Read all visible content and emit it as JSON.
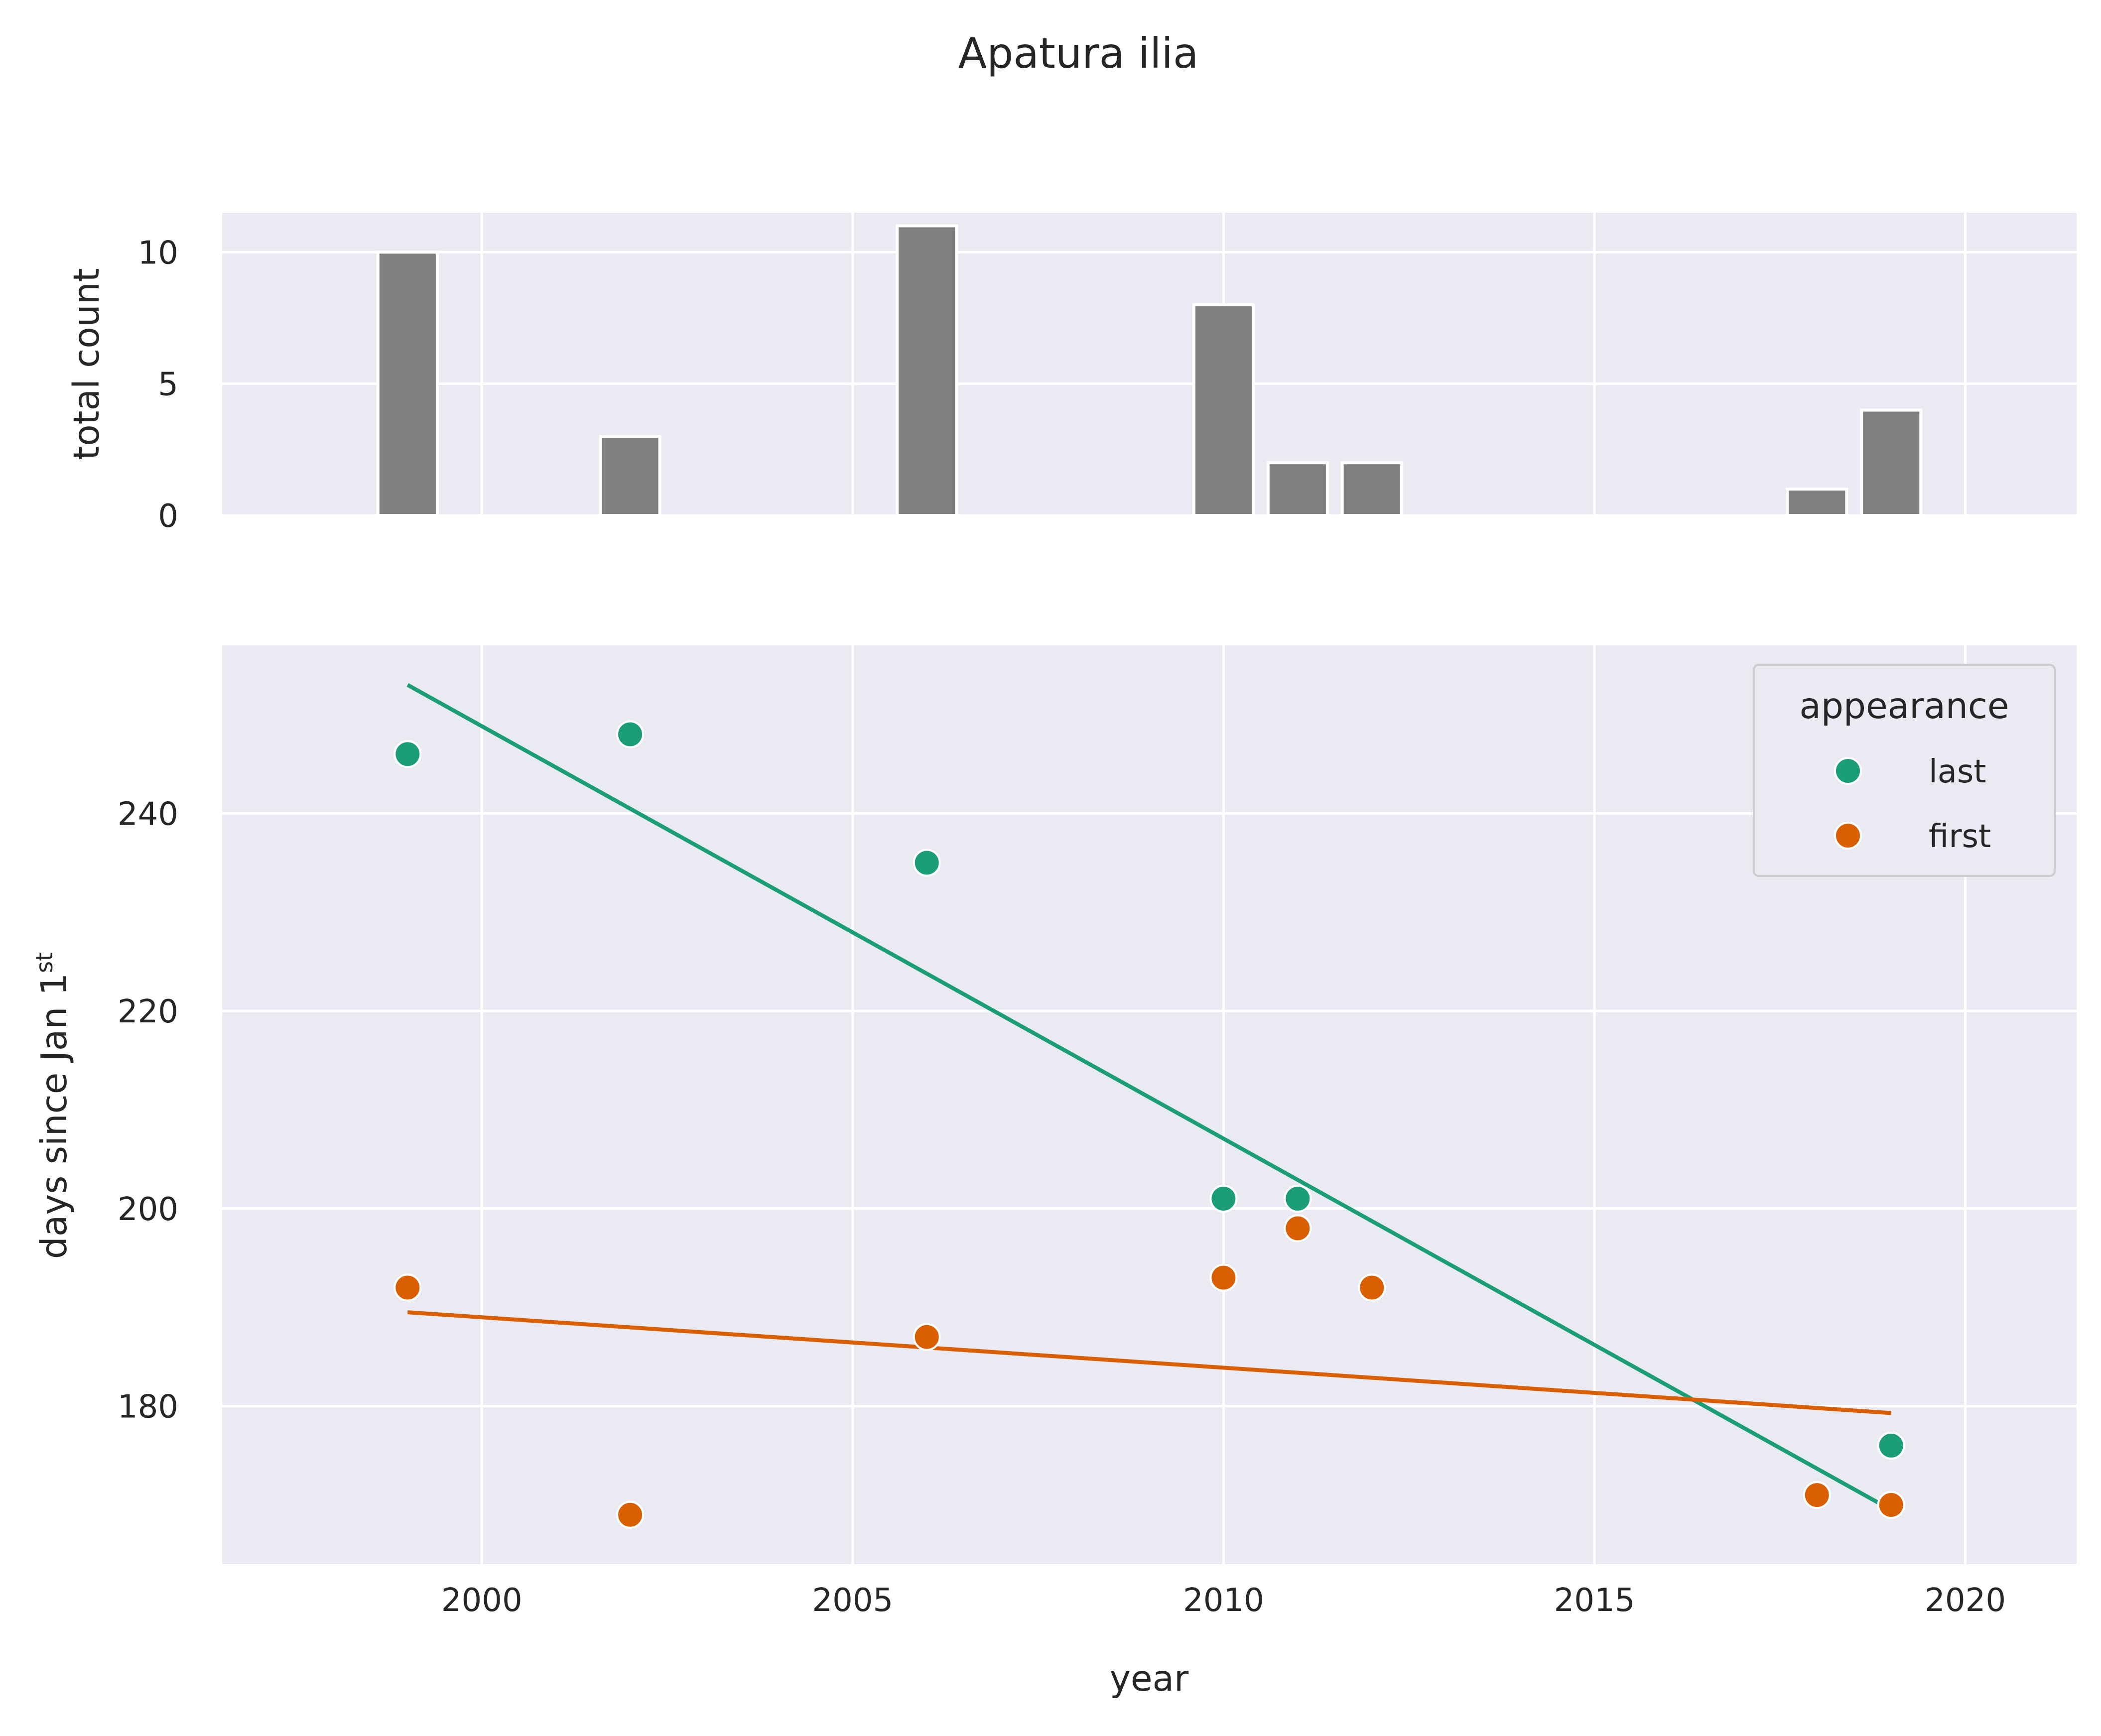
{
  "title": "Apatura ilia",
  "chart_data": [
    {
      "type": "bar",
      "ylabel": "total count",
      "xlim": [
        1996.5,
        2021.5
      ],
      "ylim": [
        0,
        11.5
      ],
      "yticks": [
        0,
        5,
        10
      ],
      "bar_color": "#808080",
      "grid": true,
      "x": [
        1999,
        2002,
        2006,
        2010,
        2011,
        2012,
        2018,
        2019
      ],
      "values": [
        10,
        3,
        11,
        8,
        2,
        2,
        1,
        4
      ]
    },
    {
      "type": "scatter",
      "xlabel": "year",
      "ylabel_main": "days since Jan 1",
      "ylabel_sup": "st",
      "xlim": [
        1996.5,
        2021.5
      ],
      "ylim": [
        164,
        257
      ],
      "xticks": [
        2000,
        2005,
        2010,
        2015,
        2020
      ],
      "yticks": [
        180,
        200,
        220,
        240
      ],
      "grid": true,
      "legend": {
        "title": "appearance",
        "position": "top-right"
      },
      "series": [
        {
          "name": "last",
          "color": "#1b9e77",
          "points": [
            [
              1999,
              246
            ],
            [
              2002,
              248
            ],
            [
              2006,
              235
            ],
            [
              2010,
              201
            ],
            [
              2011,
              201
            ],
            [
              2019,
              176
            ]
          ],
          "trend": [
            [
              1999,
              253
            ],
            [
              2019,
              169.5
            ]
          ]
        },
        {
          "name": "first",
          "color": "#d95f02",
          "points": [
            [
              1999,
              192
            ],
            [
              2002,
              169
            ],
            [
              2006,
              187
            ],
            [
              2010,
              193
            ],
            [
              2011,
              198
            ],
            [
              2012,
              192
            ],
            [
              2018,
              171
            ],
            [
              2019,
              170
            ]
          ],
          "trend": [
            [
              1999,
              189.5
            ],
            [
              2019,
              179.3
            ]
          ]
        }
      ]
    }
  ]
}
